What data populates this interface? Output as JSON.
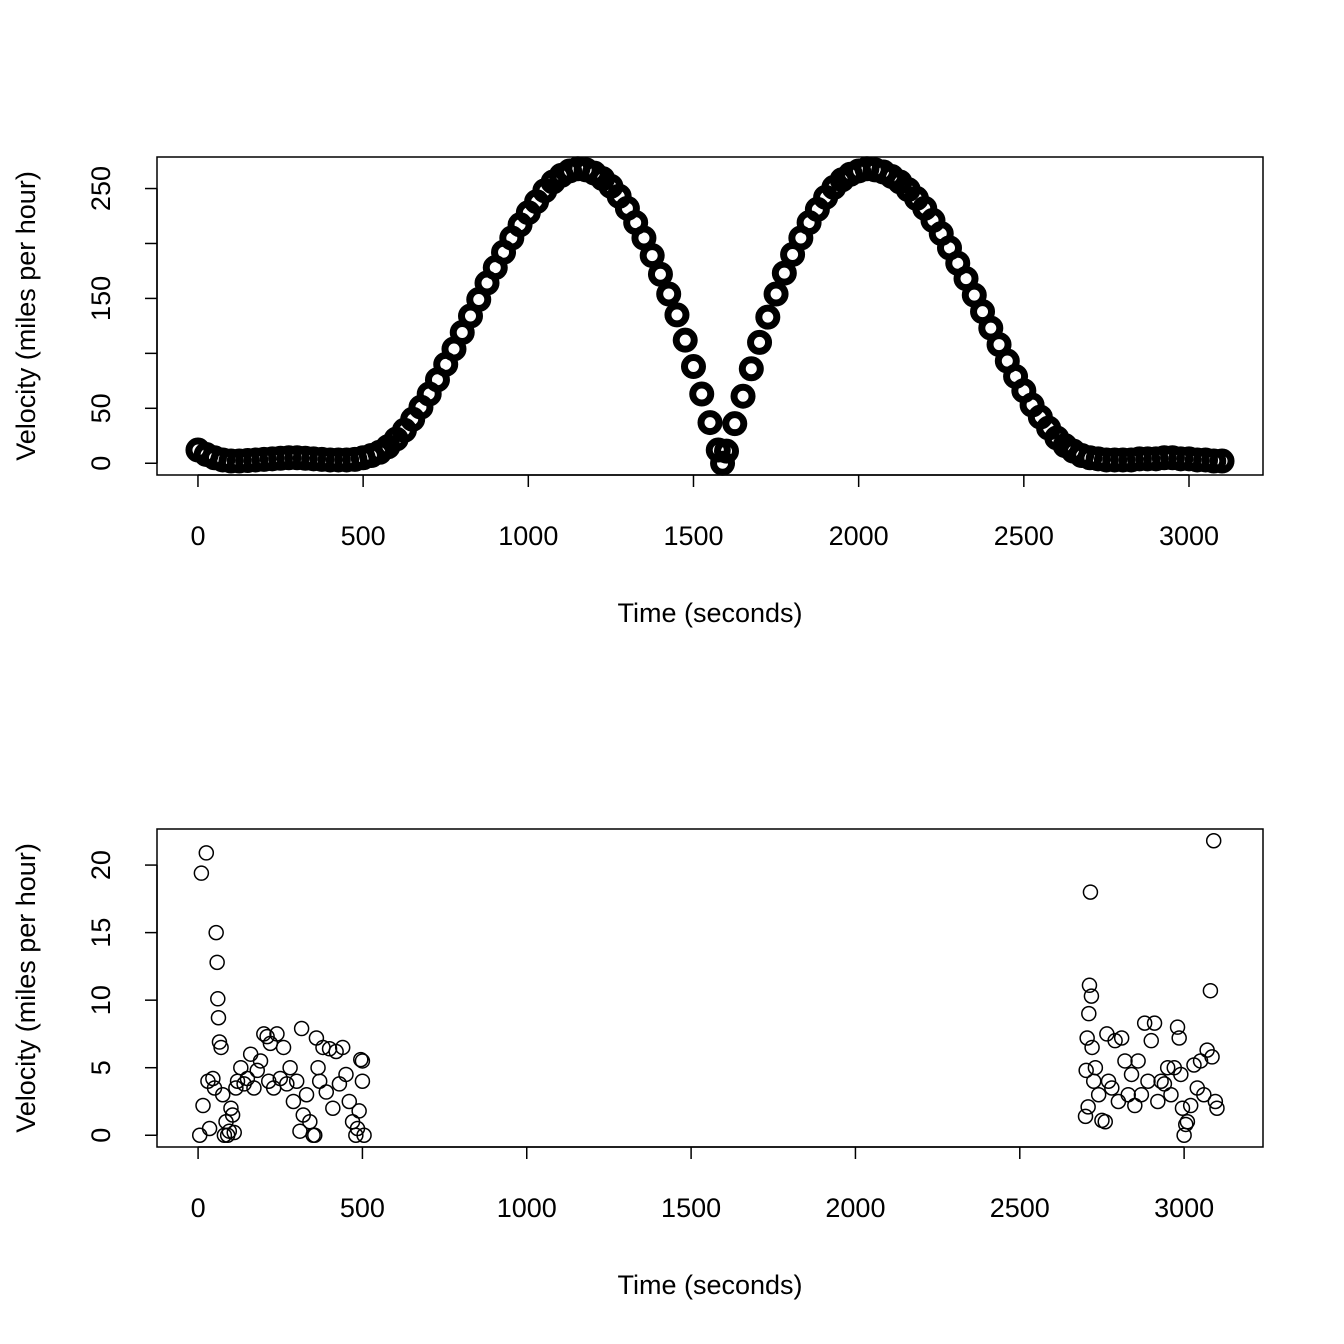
{
  "chart_data": [
    {
      "type": "scatter",
      "xlabel": "Time (seconds)",
      "ylabel": "Velocity (miles per hour)",
      "x": [
        0,
        25,
        50,
        75,
        100,
        125,
        150,
        175,
        200,
        225,
        250,
        275,
        300,
        325,
        350,
        375,
        400,
        425,
        450,
        475,
        500,
        525,
        550,
        575,
        600,
        625,
        650,
        675,
        700,
        725,
        750,
        775,
        800,
        825,
        850,
        875,
        900,
        925,
        950,
        975,
        1000,
        1025,
        1050,
        1075,
        1100,
        1125,
        1150,
        1175,
        1200,
        1225,
        1250,
        1275,
        1300,
        1325,
        1350,
        1375,
        1400,
        1425,
        1450,
        1475,
        1500,
        1525,
        1550,
        1575,
        1588,
        1600,
        1625,
        1650,
        1675,
        1700,
        1725,
        1750,
        1775,
        1800,
        1825,
        1850,
        1875,
        1900,
        1925,
        1950,
        1975,
        2000,
        2025,
        2050,
        2075,
        2100,
        2125,
        2150,
        2175,
        2200,
        2225,
        2250,
        2275,
        2300,
        2325,
        2350,
        2375,
        2400,
        2425,
        2450,
        2475,
        2500,
        2525,
        2550,
        2575,
        2600,
        2625,
        2650,
        2675,
        2700,
        2725,
        2750,
        2775,
        2800,
        2825,
        2850,
        2875,
        2900,
        2925,
        2950,
        2975,
        3000,
        3025,
        3050,
        3075,
        3100
      ],
      "values": [
        12,
        8,
        5,
        3,
        2,
        2,
        2.5,
        3,
        3.5,
        4,
        4.5,
        5,
        5,
        4.5,
        4,
        3.5,
        3,
        3,
        3,
        3.5,
        5,
        7,
        10,
        15,
        22,
        30,
        40,
        51,
        63,
        76,
        90,
        104,
        119,
        134,
        149,
        164,
        178,
        192,
        205,
        217,
        228,
        238,
        248,
        256,
        262,
        266,
        268,
        267,
        264,
        259,
        252,
        243,
        232,
        219,
        205,
        189,
        172,
        154,
        135,
        112,
        88,
        63,
        37,
        12,
        0,
        11,
        36,
        61,
        86,
        110,
        133,
        154,
        173,
        190,
        205,
        219,
        231,
        242,
        251,
        258,
        263,
        266,
        268,
        267,
        265,
        261,
        256,
        249,
        241,
        232,
        221,
        209,
        196,
        182,
        168,
        153,
        138,
        123,
        108,
        93,
        79,
        66,
        53,
        42,
        32,
        23,
        16,
        11,
        7,
        5,
        4,
        3,
        3,
        3,
        3,
        4,
        4,
        4,
        5,
        5,
        4,
        4,
        3,
        3,
        2,
        2
      ],
      "xlim": [
        -124,
        3224
      ],
      "ylim": [
        -10.7,
        278.7
      ],
      "xticks": [
        0,
        500,
        1000,
        1500,
        2000,
        2500,
        3000
      ],
      "yticks": [
        0,
        50,
        150,
        250
      ],
      "minor_yticks": [
        100,
        200
      ]
    },
    {
      "type": "scatter",
      "xlabel": "Time (seconds)",
      "ylabel": "Velocity (miles per hour)",
      "x": [
        5,
        10,
        15,
        25,
        30,
        35,
        45,
        50,
        55,
        58,
        60,
        62,
        65,
        70,
        75,
        80,
        85,
        90,
        95,
        100,
        105,
        110,
        115,
        120,
        130,
        140,
        150,
        160,
        170,
        180,
        190,
        200,
        210,
        215,
        220,
        230,
        240,
        250,
        260,
        270,
        280,
        290,
        300,
        310,
        315,
        320,
        330,
        340,
        350,
        355,
        360,
        365,
        370,
        380,
        390,
        400,
        410,
        420,
        430,
        440,
        450,
        460,
        470,
        480,
        485,
        490,
        495,
        500,
        500,
        505,
        2700,
        2702,
        2705,
        2708,
        2710,
        2712,
        2715,
        2718,
        2720,
        2725,
        2730,
        2740,
        2750,
        2760,
        2765,
        2770,
        2780,
        2790,
        2800,
        2810,
        2820,
        2830,
        2840,
        2850,
        2860,
        2870,
        2880,
        2890,
        2900,
        2910,
        2920,
        2930,
        2940,
        2950,
        2960,
        2970,
        2980,
        2985,
        2990,
        2995,
        3000,
        3005,
        3010,
        3020,
        3030,
        3040,
        3050,
        3060,
        3070,
        3080,
        3085,
        3090,
        3095,
        3100
      ],
      "values": [
        0,
        19.4,
        2.2,
        20.9,
        4,
        0.5,
        4.2,
        3.5,
        15,
        12.8,
        10.1,
        8.7,
        6.9,
        6.5,
        3,
        0,
        1,
        0,
        0.3,
        2,
        1.5,
        0.2,
        3.5,
        4,
        5,
        3.8,
        4.2,
        6,
        3.5,
        4.8,
        5.5,
        7.5,
        7.3,
        4,
        6.8,
        3.5,
        7.5,
        4.2,
        6.5,
        3.8,
        5,
        2.5,
        4,
        0.3,
        7.9,
        1.5,
        3,
        1,
        0,
        0,
        7.2,
        5,
        4,
        6.5,
        3.2,
        6.4,
        2,
        6.2,
        3.8,
        6.5,
        4.5,
        2.5,
        1,
        0,
        0.5,
        1.8,
        5.6,
        5.5,
        4,
        0,
        1.4,
        4.8,
        7.2,
        2.1,
        9,
        11.1,
        18,
        10.3,
        6.5,
        4,
        5,
        3,
        1.1,
        1,
        7.5,
        4,
        3.5,
        7,
        2.5,
        7.2,
        5.5,
        3,
        4.5,
        2.2,
        5.5,
        3,
        8.3,
        4,
        7,
        8.3,
        2.5,
        4,
        3.8,
        5,
        3,
        5,
        8,
        7.2,
        4.5,
        2,
        0,
        0.8,
        1,
        2.2,
        5.2,
        3.5,
        5.5,
        3,
        6.3,
        10.7,
        5.8,
        21.8,
        2.5,
        2
      ],
      "xlim": [
        -125,
        3240
      ],
      "ylim": [
        -0.87,
        22.67
      ],
      "xticks": [
        0,
        500,
        1000,
        1500,
        2000,
        2500,
        3000
      ],
      "yticks": [
        0,
        5,
        10,
        15,
        20
      ]
    }
  ]
}
